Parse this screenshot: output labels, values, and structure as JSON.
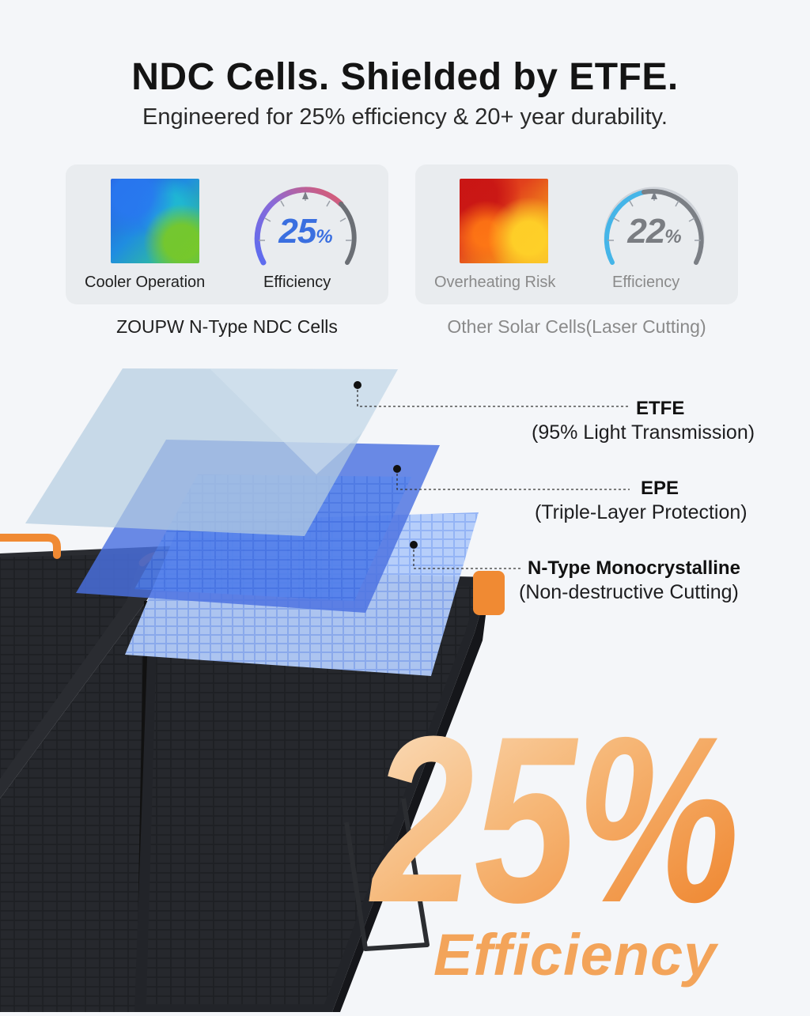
{
  "header": {
    "title": "NDC Cells. Shielded by ETFE.",
    "subtitle": "Engineered for 25% efficiency & 20+ year durability."
  },
  "comparison": {
    "left": {
      "thermal_label": "Cooler Operation",
      "gauge_value": "25",
      "gauge_unit": "%",
      "gauge_label": "Efficiency",
      "caption": "ZOUPW N-Type NDC Cells"
    },
    "right": {
      "thermal_label": "Overheating Risk",
      "gauge_value": "22",
      "gauge_unit": "%",
      "gauge_label": "Efficiency",
      "caption": "Other Solar Cells(Laser Cutting)"
    }
  },
  "layers": [
    {
      "name": "ETFE",
      "detail": "(95% Light Transmission)"
    },
    {
      "name": "EPE",
      "detail": "(Triple-Layer Protection)"
    },
    {
      "name": "N-Type Monocrystalline",
      "detail": "(Non-destructive Cutting)"
    }
  ],
  "highlight": {
    "value": "25%",
    "label": "Efficiency"
  },
  "colors": {
    "accent_blue": "#3a6fe0",
    "accent_orange": "#f08a33",
    "muted_grey": "#8a8a8a"
  }
}
